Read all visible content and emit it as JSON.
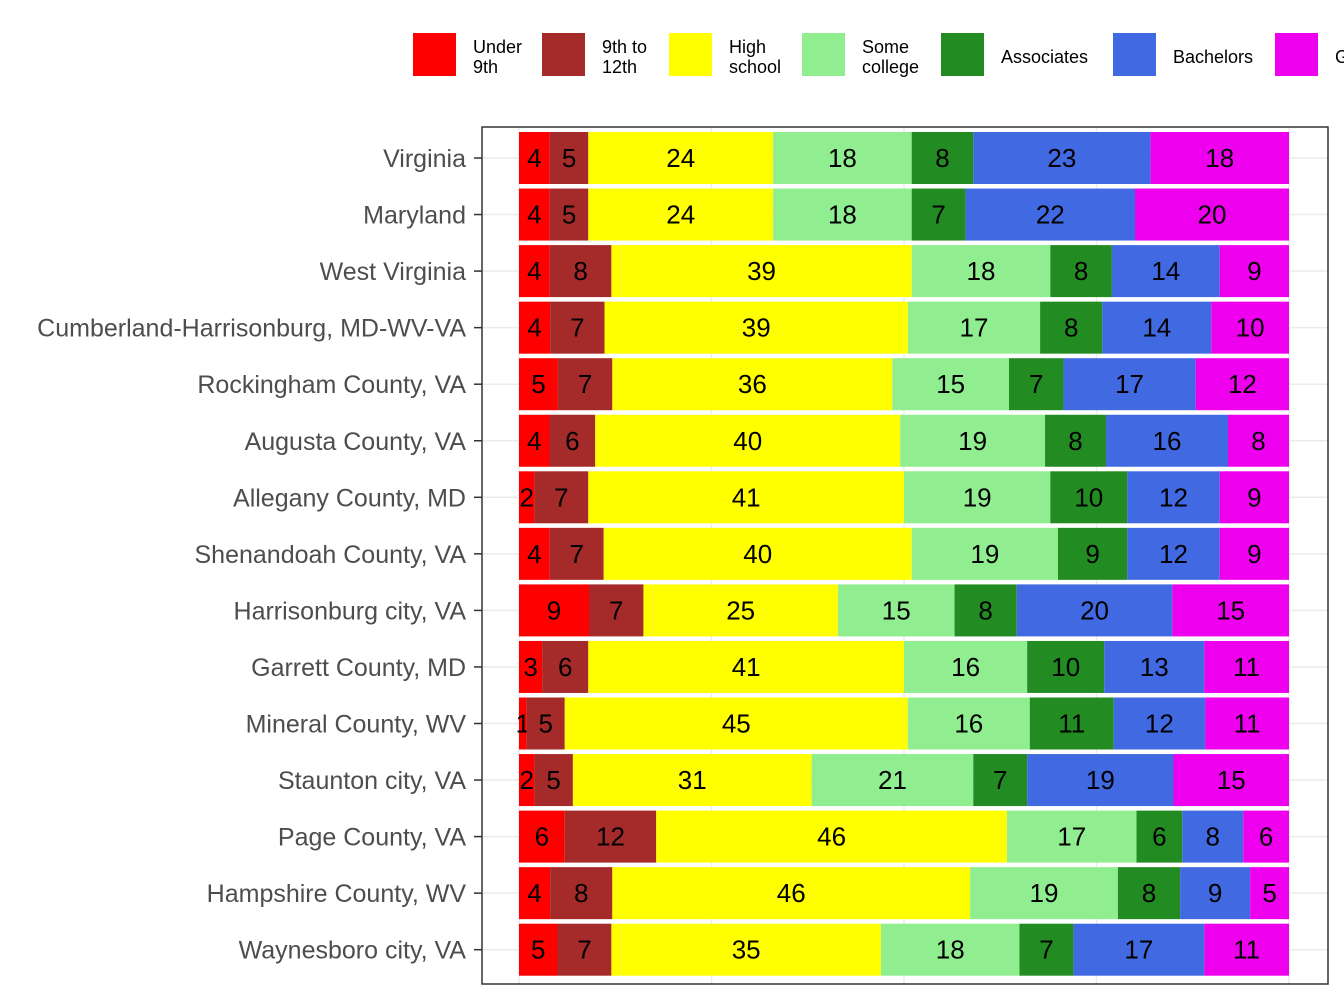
{
  "chart_data": {
    "type": "bar",
    "orientation": "horizontal",
    "stacked": true,
    "normalized": true,
    "title": "",
    "xlabel": "",
    "ylabel": "",
    "xlim": [
      0,
      100
    ],
    "legend_position": "top",
    "categories": [
      "Virginia",
      "Maryland",
      "West Virginia",
      "Cumberland-Harrisonburg, MD-WV-VA",
      "Rockingham County, VA",
      "Augusta County, VA",
      "Allegany County, MD",
      "Shenandoah County, VA",
      "Harrisonburg city, VA",
      "Garrett County, MD",
      "Mineral County, WV",
      "Staunton city, VA",
      "Page County, VA",
      "Hampshire County, WV",
      "Waynesboro city, VA"
    ],
    "series": [
      {
        "name": "Under 9th",
        "legend_lines": [
          "Under",
          "9th"
        ],
        "color": "#FF0000",
        "values": [
          4,
          4,
          4,
          4,
          5,
          4,
          2,
          4,
          9,
          3,
          1,
          2,
          6,
          4,
          5
        ]
      },
      {
        "name": "9th to 12th",
        "legend_lines": [
          "9th to",
          "12th"
        ],
        "color": "#A52A2A",
        "values": [
          5,
          5,
          8,
          7,
          7,
          6,
          7,
          7,
          7,
          6,
          5,
          5,
          12,
          8,
          7
        ]
      },
      {
        "name": "High school",
        "legend_lines": [
          "High",
          "school"
        ],
        "color": "#FFFF00",
        "values": [
          24,
          24,
          39,
          39,
          36,
          40,
          41,
          40,
          25,
          41,
          45,
          31,
          46,
          46,
          35
        ]
      },
      {
        "name": "Some college",
        "legend_lines": [
          "Some",
          "college"
        ],
        "color": "#90EE90",
        "values": [
          18,
          18,
          18,
          17,
          15,
          19,
          19,
          19,
          15,
          16,
          16,
          21,
          17,
          19,
          18
        ]
      },
      {
        "name": "Associates",
        "legend_lines": [
          "Associates"
        ],
        "color": "#228B22",
        "values": [
          8,
          7,
          8,
          8,
          7,
          8,
          10,
          9,
          8,
          10,
          11,
          7,
          6,
          8,
          7
        ]
      },
      {
        "name": "Bachelors",
        "legend_lines": [
          "Bachelors"
        ],
        "color": "#4169E1",
        "values": [
          23,
          22,
          14,
          14,
          17,
          16,
          12,
          12,
          20,
          13,
          12,
          19,
          8,
          9,
          17
        ]
      },
      {
        "name": "Graduate",
        "legend_lines": [
          "G"
        ],
        "color": "#EE00EE",
        "values": [
          18,
          20,
          9,
          10,
          12,
          8,
          9,
          9,
          15,
          11,
          11,
          15,
          6,
          5,
          11
        ]
      }
    ]
  }
}
